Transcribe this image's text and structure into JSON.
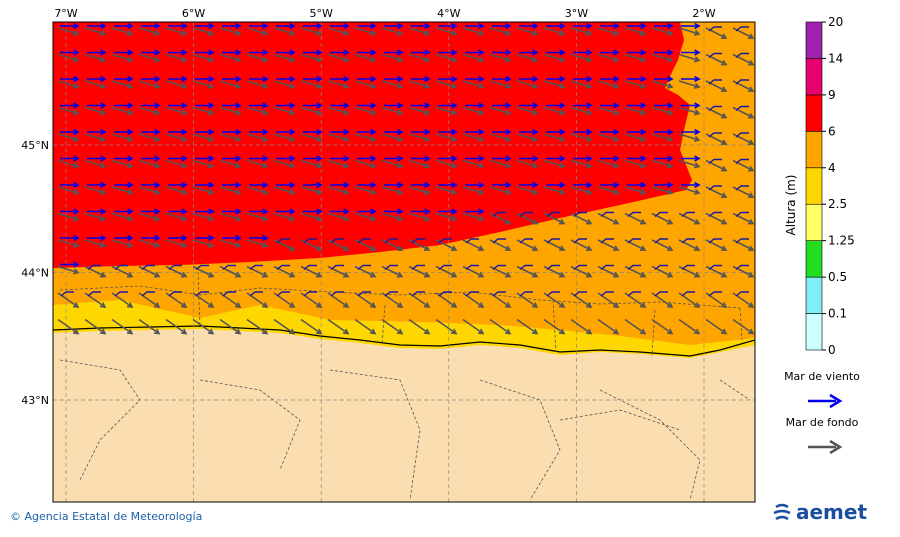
{
  "map": {
    "lon_labels": [
      "7°W",
      "6°W",
      "5°W",
      "4°W",
      "3°W",
      "2°W"
    ],
    "lat_labels": [
      "45°N",
      "44°N",
      "43°N"
    ],
    "colorbar": {
      "title": "Altura (m)",
      "levels": [
        "0",
        "0.1",
        "0.5",
        "1.25",
        "2.5",
        "4",
        "6",
        "9",
        "14",
        "20"
      ],
      "colors": [
        "#ccffff",
        "#80eef6",
        "#22dd22",
        "#ffff66",
        "#ffd700",
        "#ffa500",
        "#ff0000",
        "#e8006e",
        "#a020b0"
      ]
    },
    "legend": [
      {
        "label": "Mar de viento",
        "color": "#0000ee"
      },
      {
        "label": "Mar de fondo",
        "color": "#555555"
      }
    ],
    "footer": "© Agencia Estatal de Meteorología",
    "logo": "aemet"
  }
}
